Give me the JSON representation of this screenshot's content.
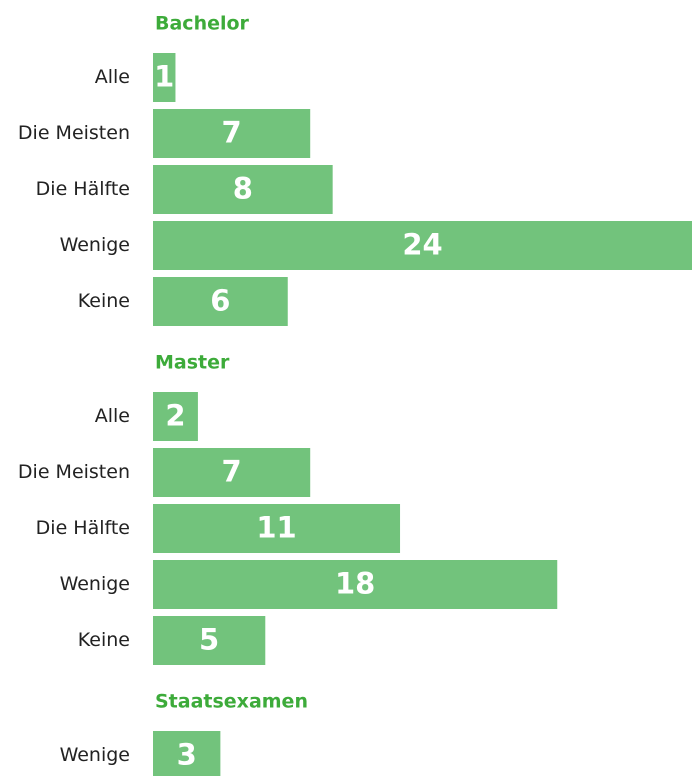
{
  "chart_data": [
    {
      "type": "bar",
      "orientation": "horizontal",
      "title": "Bachelor",
      "color": "#72c37c",
      "categories": [
        "Alle",
        "Die Meisten",
        "Die Hälfte",
        "Wenige",
        "Keine"
      ],
      "values": [
        1,
        7,
        8,
        24,
        6
      ]
    },
    {
      "type": "bar",
      "orientation": "horizontal",
      "title": "Master",
      "color": "#72c37c",
      "categories": [
        "Alle",
        "Die Meisten",
        "Die Hälfte",
        "Wenige",
        "Keine"
      ],
      "values": [
        2,
        7,
        11,
        18,
        5
      ]
    },
    {
      "type": "bar",
      "orientation": "horizontal",
      "title": "Staatsexamen",
      "color": "#72c37c",
      "categories": [
        "Wenige"
      ],
      "values": [
        3
      ]
    }
  ]
}
